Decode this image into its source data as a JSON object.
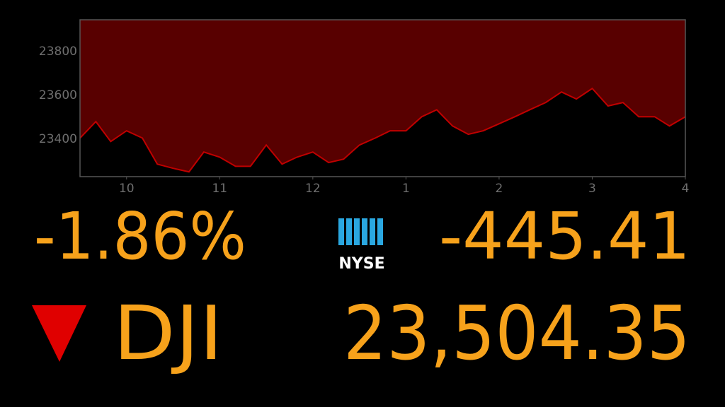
{
  "chart_data": {
    "type": "area",
    "x": [
      9.5,
      9.67,
      9.83,
      10,
      10.17,
      10.33,
      10.5,
      10.67,
      10.83,
      11,
      11.17,
      11.33,
      11.5,
      11.67,
      11.83,
      12,
      12.17,
      12.33,
      12.5,
      12.67,
      12.83,
      13,
      13.17,
      13.33,
      13.5,
      13.67,
      13.83,
      14,
      14.17,
      14.33,
      14.5,
      14.67,
      14.83,
      15,
      15.17,
      15.33,
      15.5,
      15.67,
      15.83,
      16
    ],
    "values": [
      23406,
      23481,
      23390,
      23439,
      23406,
      23287,
      23268,
      23252,
      23342,
      23319,
      23277,
      23277,
      23374,
      23287,
      23319,
      23342,
      23294,
      23310,
      23374,
      23406,
      23439,
      23439,
      23503,
      23535,
      23461,
      23423,
      23439,
      23471,
      23503,
      23535,
      23568,
      23616,
      23584,
      23632,
      23552,
      23568,
      23503,
      23503,
      23461,
      23503
    ],
    "color": "#c00000",
    "xlim": [
      9.5,
      16
    ],
    "xticks": [
      {
        "value": 10,
        "label": "10"
      },
      {
        "value": 11,
        "label": "11"
      },
      {
        "value": 12,
        "label": "12"
      },
      {
        "value": 13,
        "label": "1"
      },
      {
        "value": 14,
        "label": "2"
      },
      {
        "value": 15,
        "label": "3"
      },
      {
        "value": 16,
        "label": "4"
      }
    ],
    "ylim": [
      23230,
      23945
    ],
    "yticks": [
      23400,
      23600,
      23800
    ]
  },
  "ticker": {
    "percent_change": "-1.86%",
    "exchange": "NYSE",
    "point_change": "-445.41",
    "symbol": "DJI",
    "price": "23,504.35"
  }
}
